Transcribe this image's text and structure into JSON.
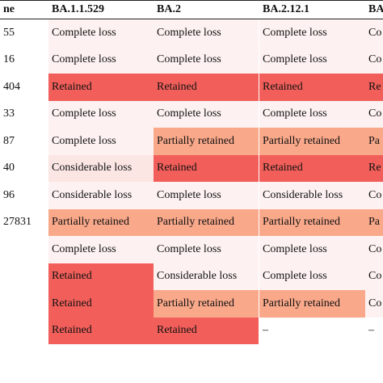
{
  "columns": [
    "ne",
    "BA.1.1.529",
    "BA.2",
    "BA.2.12.1",
    "BA"
  ],
  "rows": [
    {
      "cells": [
        {
          "text": "55",
          "level": "none"
        },
        {
          "text": "Complete loss",
          "level": "loss"
        },
        {
          "text": "Complete loss",
          "level": "loss"
        },
        {
          "text": "Complete loss",
          "level": "loss"
        },
        {
          "text": "Co",
          "level": "loss"
        }
      ]
    },
    {
      "cells": [
        {
          "text": "16",
          "level": "none"
        },
        {
          "text": "Complete loss",
          "level": "loss"
        },
        {
          "text": "Complete loss",
          "level": "loss"
        },
        {
          "text": "Complete loss",
          "level": "loss"
        },
        {
          "text": "Co",
          "level": "loss"
        }
      ]
    },
    {
      "cells": [
        {
          "text": "404",
          "level": "none"
        },
        {
          "text": "Retained",
          "level": "ret"
        },
        {
          "text": "Retained",
          "level": "ret"
        },
        {
          "text": "Retained",
          "level": "ret"
        },
        {
          "text": "Re",
          "level": "ret"
        }
      ]
    },
    {
      "cells": [
        {
          "text": "33",
          "level": "none"
        },
        {
          "text": "Complete loss",
          "level": "loss"
        },
        {
          "text": "Complete loss",
          "level": "loss"
        },
        {
          "text": "Complete loss",
          "level": "loss"
        },
        {
          "text": "Co",
          "level": "loss"
        }
      ]
    },
    {
      "cells": [
        {
          "text": "87",
          "level": "none"
        },
        {
          "text": "Complete loss",
          "level": "loss"
        },
        {
          "text": "Partially retained",
          "level": "part"
        },
        {
          "text": "Partially retained",
          "level": "part"
        },
        {
          "text": "Pa",
          "level": "part"
        }
      ]
    },
    {
      "cells": [
        {
          "text": "40",
          "level": "none"
        },
        {
          "text": "Considerable loss",
          "level": "cons"
        },
        {
          "text": "Retained",
          "level": "ret"
        },
        {
          "text": "Retained",
          "level": "ret"
        },
        {
          "text": "Re",
          "level": "ret"
        }
      ]
    },
    {
      "cells": [
        {
          "text": "96",
          "level": "none"
        },
        {
          "text": "Considerable loss",
          "level": "loss"
        },
        {
          "text": "Complete loss",
          "level": "loss"
        },
        {
          "text": "Considerable loss",
          "level": "loss"
        },
        {
          "text": "Co",
          "level": "loss"
        }
      ]
    },
    {
      "cells": [
        {
          "text": "27831",
          "level": "none"
        },
        {
          "text": "Partially retained",
          "level": "part"
        },
        {
          "text": "Partially retained",
          "level": "part"
        },
        {
          "text": "Partially retained",
          "level": "part"
        },
        {
          "text": "Pa",
          "level": "part"
        }
      ]
    },
    {
      "cells": [
        {
          "text": "",
          "level": "none"
        },
        {
          "text": "Complete loss",
          "level": "loss"
        },
        {
          "text": "Complete loss",
          "level": "loss"
        },
        {
          "text": "Complete loss",
          "level": "loss"
        },
        {
          "text": "Co",
          "level": "loss"
        }
      ]
    },
    {
      "cells": [
        {
          "text": "",
          "level": "none"
        },
        {
          "text": "Retained",
          "level": "ret"
        },
        {
          "text": "Considerable loss",
          "level": "loss"
        },
        {
          "text": "Complete loss",
          "level": "loss"
        },
        {
          "text": "Co",
          "level": "loss"
        }
      ]
    },
    {
      "cells": [
        {
          "text": "",
          "level": "none"
        },
        {
          "text": "Retained",
          "level": "ret"
        },
        {
          "text": "Partially retained",
          "level": "part"
        },
        {
          "text": "Partially retained",
          "level": "part"
        },
        {
          "text": "Co",
          "level": "loss"
        }
      ]
    },
    {
      "cells": [
        {
          "text": "",
          "level": "none"
        },
        {
          "text": "Retained",
          "level": "ret"
        },
        {
          "text": "Retained",
          "level": "ret"
        },
        {
          "text": "–",
          "level": "none"
        },
        {
          "text": "–",
          "level": "none"
        }
      ]
    }
  ]
}
